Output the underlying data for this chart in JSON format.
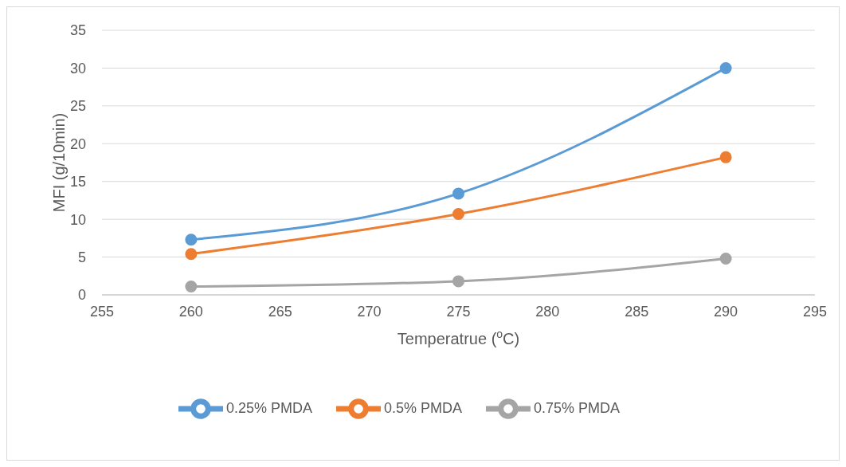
{
  "chart_data": {
    "type": "line",
    "xlabel": "Temperatrue ($^{o}$C)",
    "ylabel": "MFI (g/10min)",
    "x": [
      260,
      275,
      290
    ],
    "series": [
      {
        "name": "0.25% PMDA",
        "color": "#5b9bd5",
        "values": [
          7.3,
          13.4,
          30
        ]
      },
      {
        "name": "0.5% PMDA",
        "color": "#ed7d31",
        "values": [
          5.4,
          10.7,
          18.2
        ]
      },
      {
        "name": "0.75% PMDA",
        "color": "#a5a5a5",
        "values": [
          1.1,
          1.8,
          4.8
        ]
      }
    ],
    "xlim": [
      255,
      295
    ],
    "xticks": [
      255,
      260,
      265,
      270,
      275,
      280,
      285,
      290,
      295
    ],
    "ylim": [
      0,
      35
    ],
    "yticks": [
      0,
      5,
      10,
      15,
      20,
      25,
      30,
      35
    ],
    "grid": "y",
    "legend": "bottom",
    "marker": "circle",
    "line_style": "solid"
  }
}
